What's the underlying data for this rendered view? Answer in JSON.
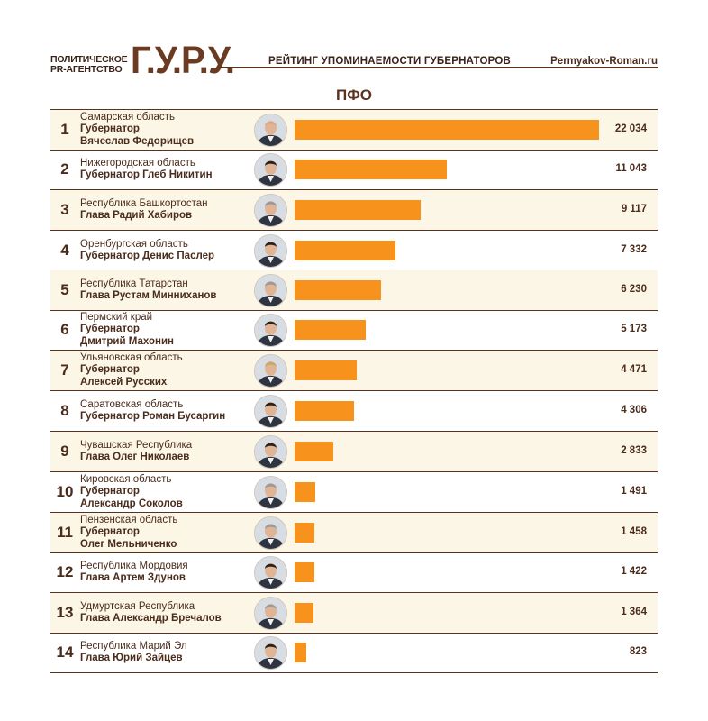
{
  "header": {
    "agency_line1": "ПОЛИТИЧЕСКОЕ",
    "agency_line2": "PR-АГЕНТСТВО",
    "logo": "Г.У.Р.У.",
    "rating_title": "РЕЙТИНГ УПОМИНАЕМОСТИ ГУБЕРНАТОРОВ",
    "site": "Permyakov-Roman.ru"
  },
  "chart_data": {
    "type": "bar",
    "title": "ПФО",
    "orientation": "horizontal",
    "xlim": [
      0,
      22034
    ],
    "bar_color": "#f7931d",
    "rows": [
      {
        "rank": "1",
        "region": "Самарская область",
        "governor": [
          "Губернатор",
          "Вячеслав Федорищев"
        ],
        "value": 22034,
        "value_label": "22 034",
        "avatar": "portrait-bald-man"
      },
      {
        "rank": "2",
        "region": "Нижегородская область",
        "governor": [
          "Губернатор Глеб Никитин"
        ],
        "value": 11043,
        "value_label": "11 043",
        "avatar": "portrait-dark-hair"
      },
      {
        "rank": "3",
        "region": "Республика Башкортостан",
        "governor": [
          "Глава Радий Хабиров"
        ],
        "value": 9117,
        "value_label": "9 117",
        "avatar": "portrait-grey-hair"
      },
      {
        "rank": "4",
        "region": "Оренбургская область",
        "governor": [
          "Губернатор Денис Паслер"
        ],
        "value": 7332,
        "value_label": "7 332",
        "avatar": "portrait-dark-hair"
      },
      {
        "rank": "5",
        "region": "Республика Татарстан",
        "governor": [
          "Глава Рустам Минниханов"
        ],
        "value": 6230,
        "value_label": "6 230",
        "avatar": "portrait-grey-hair"
      },
      {
        "rank": "6",
        "region": "Пермский край",
        "governor": [
          "Губернатор",
          "Дмитрий Махонин"
        ],
        "value": 5173,
        "value_label": "5 173",
        "avatar": "portrait-dark-hair"
      },
      {
        "rank": "7",
        "region": "Ульяновская область",
        "governor": [
          "Губернатор",
          "Алексей Русских"
        ],
        "value": 4471,
        "value_label": "4 471",
        "avatar": "portrait-light-hair"
      },
      {
        "rank": "8",
        "region": "Саратовская область",
        "governor": [
          "Губернатор Роман Бусаргин"
        ],
        "value": 4306,
        "value_label": "4 306",
        "avatar": "portrait-dark-hair"
      },
      {
        "rank": "9",
        "region": "Чувашская Республика",
        "governor": [
          "Глава Олег Николаев"
        ],
        "value": 2833,
        "value_label": "2 833",
        "avatar": "portrait-dark-hair"
      },
      {
        "rank": "10",
        "region": "Кировская область",
        "governor": [
          "Губернатор",
          "Александр Соколов"
        ],
        "value": 1491,
        "value_label": "1 491",
        "avatar": "portrait-grey-hair"
      },
      {
        "rank": "11",
        "region": "Пензенская область",
        "governor": [
          "Губернатор",
          "Олег Мельниченко"
        ],
        "value": 1458,
        "value_label": "1 458",
        "avatar": "portrait-grey-hair"
      },
      {
        "rank": "12",
        "region": "Республика Мордовия",
        "governor": [
          "Глава Артем Здунов"
        ],
        "value": 1422,
        "value_label": "1 422",
        "avatar": "portrait-dark-hair"
      },
      {
        "rank": "13",
        "region": "Удмуртская Республика",
        "governor": [
          "Глава Александр Бречалов"
        ],
        "value": 1364,
        "value_label": "1 364",
        "avatar": "portrait-grey-hair"
      },
      {
        "rank": "14",
        "region": "Республика Марий Эл",
        "governor": [
          "Глава Юрий Зайцев"
        ],
        "value": 823,
        "value_label": "823",
        "avatar": "portrait-dark-hair"
      }
    ]
  }
}
